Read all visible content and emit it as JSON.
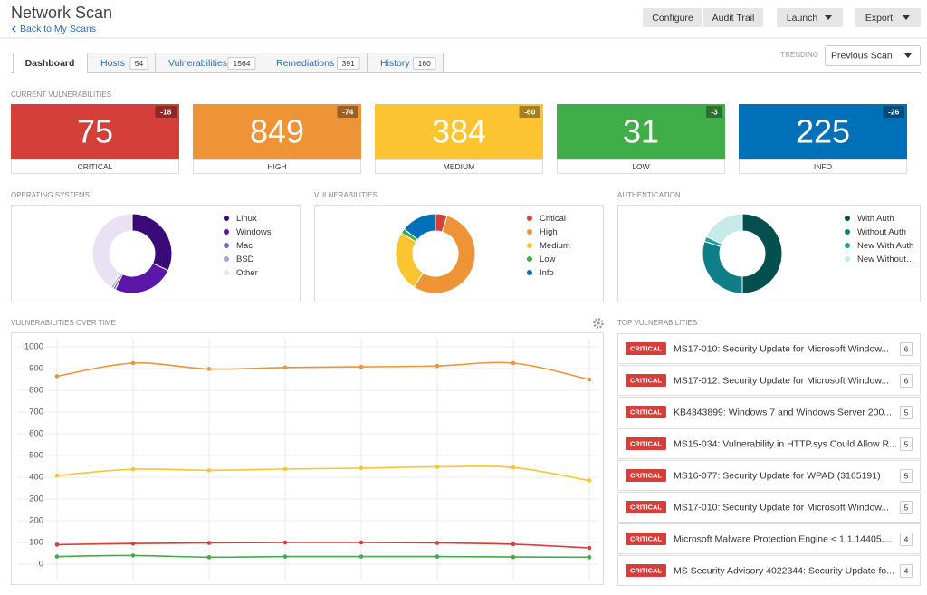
{
  "header": {
    "title": "Network Scan",
    "back_link": "Back to My Scans",
    "buttons": [
      "Configure",
      "Audit Trail",
      "Launch",
      "Export"
    ]
  },
  "tabs": [
    {
      "label": "Dashboard"
    },
    {
      "label": "Hosts",
      "count": 54
    },
    {
      "label": "Vulnerabilities",
      "count": 1564
    },
    {
      "label": "Remediations",
      "count": 391
    },
    {
      "label": "History",
      "count": 160
    }
  ],
  "trending": {
    "label": "TRENDING",
    "selected": "Previous Scan"
  },
  "current_vulnerabilities": {
    "title": "CURRENT VULNERABILITIES",
    "cards": [
      {
        "value": 75,
        "label": "CRITICAL",
        "change": -18,
        "color": "#d43f3a"
      },
      {
        "value": 849,
        "label": "HIGH",
        "change": -74,
        "color": "#ee9336"
      },
      {
        "value": 384,
        "label": "MEDIUM",
        "change": -60,
        "color": "#fdc431"
      },
      {
        "value": 31,
        "label": "LOW",
        "change": -3,
        "color": "#3fae49"
      },
      {
        "value": 225,
        "label": "INFO",
        "change": -26,
        "color": "#0071b9"
      }
    ]
  },
  "chart_data": [
    {
      "type": "pie",
      "donut": true,
      "title": "OPERATING SYSTEMS",
      "categories": [
        "Linux",
        "Windows",
        "Mac",
        "BSD",
        "Other"
      ],
      "values": [
        32,
        25,
        1,
        1,
        41
      ],
      "colors": [
        "#3a0a78",
        "#5b17a8",
        "#7c6fb0",
        "#a9a4d8",
        "#ebe1f4"
      ]
    },
    {
      "type": "pie",
      "donut": true,
      "title": "VULNERABILITIES",
      "categories": [
        "Critical",
        "High",
        "Medium",
        "Low",
        "Info"
      ],
      "values": [
        75,
        849,
        384,
        31,
        225
      ],
      "colors": [
        "#d43f3a",
        "#ee9336",
        "#fdc431",
        "#3fae49",
        "#0071b9"
      ]
    },
    {
      "type": "pie",
      "donut": true,
      "title": "AUTHENTICATION",
      "categories": [
        "With Auth",
        "Without Auth",
        "New With Auth",
        "New Without…"
      ],
      "values": [
        50,
        30,
        2,
        18
      ],
      "colors": [
        "#05504f",
        "#0f7e87",
        "#1aa3a3",
        "#c6e9ea"
      ]
    },
    {
      "type": "line",
      "title": "VULNERABILITIES OVER TIME",
      "categories": [
        null,
        null,
        null,
        null,
        null,
        null,
        null,
        null
      ],
      "series": [
        {
          "color": "#ee9336",
          "values": [
            865,
            925,
            898,
            905,
            908,
            912,
            925,
            850
          ]
        },
        {
          "color": "#fdc431",
          "values": [
            408,
            437,
            432,
            438,
            442,
            448,
            445,
            385
          ]
        },
        {
          "color": "#d43f3a",
          "values": [
            90,
            95,
            98,
            100,
            100,
            98,
            92,
            75
          ]
        },
        {
          "color": "#3fae49",
          "values": [
            35,
            40,
            32,
            35,
            35,
            35,
            33,
            32
          ]
        }
      ],
      "ylim": [
        0,
        1000
      ],
      "yticks": [
        0,
        100,
        200,
        300,
        400,
        500,
        600,
        700,
        800,
        900,
        1000
      ],
      "grid": true
    }
  ],
  "top_vulnerabilities": {
    "title": "TOP VULNERABILITIES",
    "rows": [
      {
        "severity": "CRITICAL",
        "name": "MS17-010: Security Update for Microsoft Window...",
        "count": 6
      },
      {
        "severity": "CRITICAL",
        "name": "MS17-012: Security Update for Microsoft Window...",
        "count": 6
      },
      {
        "severity": "CRITICAL",
        "name": "KB4343899: Windows 7 and Windows Server 200...",
        "count": 5
      },
      {
        "severity": "CRITICAL",
        "name": "MS15-034: Vulnerability in HTTP.sys Could Allow R...",
        "count": 5
      },
      {
        "severity": "CRITICAL",
        "name": "MS16-077: Security Update for WPAD (3165191)",
        "count": 5
      },
      {
        "severity": "CRITICAL",
        "name": "MS17-010: Security Update for Microsoft Window...",
        "count": 5
      },
      {
        "severity": "CRITICAL",
        "name": "Microsoft Malware Protection Engine < 1.1.14405....",
        "count": 4
      },
      {
        "severity": "CRITICAL",
        "name": "MS Security Advisory 4022344: Security Update fo...",
        "count": 4
      }
    ]
  }
}
